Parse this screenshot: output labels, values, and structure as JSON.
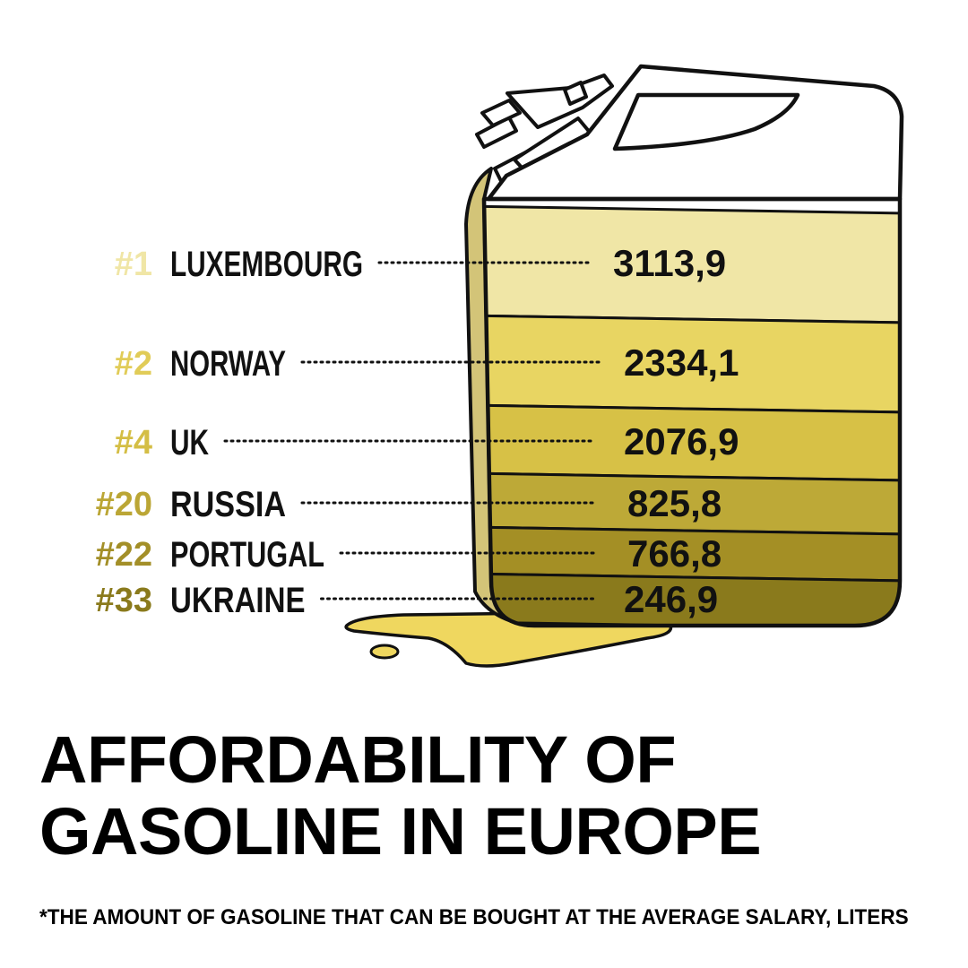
{
  "chart_data": {
    "type": "bar",
    "categories": [
      "LUXEMBOURG",
      "NORWAY",
      "UK",
      "RUSSIA",
      "PORTUGAL",
      "UKRAINE"
    ],
    "ranks": [
      "#1",
      "#2",
      "#4",
      "#20",
      "#22",
      "#33"
    ],
    "values": [
      3113.9,
      2334.1,
      2076.9,
      825.8,
      766.8,
      246.9
    ],
    "value_labels": [
      "3113,9",
      "2334,1",
      "2076,9",
      "825,8",
      "766,8",
      "246,9"
    ],
    "colors": [
      "#f0e6a6",
      "#e8d562",
      "#d7c146",
      "#bda937",
      "#a48f25",
      "#8a7a1c"
    ],
    "title_lines": [
      "AFFORDABILITY OF",
      "GASOLINE IN EUROPE"
    ],
    "footnote": "*THE AMOUNT OF GASOLINE THAT CAN BE BOUGHT AT THE AVERAGE SALARY, LITERS"
  },
  "spill_color": "#efd75f",
  "outline_color": "#111111"
}
